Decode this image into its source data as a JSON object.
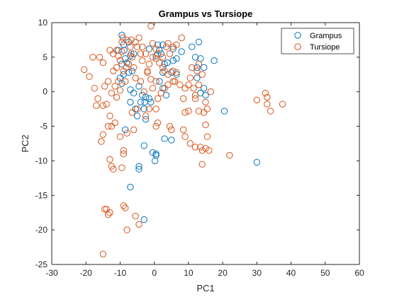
{
  "chart_data": {
    "type": "scatter",
    "title": "Grampus vs Tursiope",
    "xlabel": "PC1",
    "ylabel": "PC2",
    "xlim": [
      -30,
      60
    ],
    "ylim": [
      -25,
      10
    ],
    "x_ticks": [
      "-30",
      "-20",
      "-10",
      "0",
      "10",
      "20",
      "30",
      "40",
      "50",
      "60"
    ],
    "y_ticks": [
      "-25",
      "-20",
      "-15",
      "-10",
      "-5",
      "0",
      "5",
      "10"
    ],
    "grid": false,
    "legend_position": "top-right",
    "series": [
      {
        "name": "Grampus",
        "color": "#0072BD",
        "points": [
          [
            -9.5,
            8.2
          ],
          [
            -8.8,
            6.0
          ],
          [
            -7.5,
            7.2
          ],
          [
            -9.0,
            6.8
          ],
          [
            -10.5,
            6.0
          ],
          [
            -7.0,
            5.2
          ],
          [
            -6.0,
            5.5
          ],
          [
            -8.5,
            4.8
          ],
          [
            -9.5,
            4.0
          ],
          [
            -8.0,
            4.2
          ],
          [
            -7.5,
            2.8
          ],
          [
            -6.5,
            3.0
          ],
          [
            -9.0,
            2.5
          ],
          [
            -10.0,
            2.0
          ],
          [
            -9.5,
            1.2
          ],
          [
            -7.0,
            0.3
          ],
          [
            -6.0,
            -0.2
          ],
          [
            -4.5,
            0.8
          ],
          [
            -3.5,
            -0.5
          ],
          [
            -2.5,
            -0.8
          ],
          [
            -1.5,
            -1.0
          ],
          [
            -2.8,
            -1.5
          ],
          [
            -4.0,
            -1.5
          ],
          [
            -3.0,
            -2.5
          ],
          [
            -5.5,
            -2.5
          ],
          [
            -2.5,
            -4.0
          ],
          [
            -7.0,
            -1.5
          ],
          [
            -5.0,
            -3.5
          ],
          [
            -8.5,
            -5.5
          ],
          [
            -3.0,
            -7.8
          ],
          [
            -0.5,
            -8.8
          ],
          [
            0.5,
            -9.0
          ],
          [
            0.2,
            -10.0
          ],
          [
            -4.5,
            -10.8
          ],
          [
            -4.5,
            -11.2
          ],
          [
            -7.0,
            -13.8
          ],
          [
            -3.0,
            -18.5
          ],
          [
            -1.5,
            6.2
          ],
          [
            1.0,
            6.8
          ],
          [
            2.5,
            6.8
          ],
          [
            1.5,
            6.0
          ],
          [
            0.5,
            5.2
          ],
          [
            2.0,
            5.5
          ],
          [
            3.0,
            4.0
          ],
          [
            2.5,
            2.8
          ],
          [
            3.8,
            4.2
          ],
          [
            1.5,
            1.5
          ],
          [
            2.5,
            0.5
          ],
          [
            3.5,
            -0.5
          ],
          [
            5.0,
            2.8
          ],
          [
            6.5,
            4.8
          ],
          [
            5.5,
            4.5
          ],
          [
            6.5,
            2.5
          ],
          [
            5.5,
            6.2
          ],
          [
            8.0,
            5.8
          ],
          [
            11.0,
            6.5
          ],
          [
            13.0,
            7.2
          ],
          [
            12.0,
            5.0
          ],
          [
            12.5,
            3.5
          ],
          [
            13.5,
            4.8
          ],
          [
            14.5,
            3.5
          ],
          [
            12.5,
            2.0
          ],
          [
            14.5,
            0.5
          ],
          [
            13.5,
            -0.2
          ],
          [
            15.0,
            -0.5
          ],
          [
            17.5,
            4.5
          ],
          [
            20.5,
            -2.8
          ],
          [
            3.0,
            -6.8
          ],
          [
            5.0,
            -7.0
          ],
          [
            0.5,
            -9.2
          ],
          [
            -1.0,
            -1.5
          ],
          [
            30.0,
            -10.2
          ]
        ]
      },
      {
        "name": "Tursiope",
        "color": "#D95319",
        "points": [
          [
            -1.0,
            9.5
          ],
          [
            -13.0,
            6.0
          ],
          [
            -12.0,
            5.5
          ],
          [
            -11.0,
            6.0
          ],
          [
            -10.5,
            5.2
          ],
          [
            -9.5,
            7.2
          ],
          [
            -9.2,
            7.8
          ],
          [
            -6.8,
            7.5
          ],
          [
            -5.5,
            7.2
          ],
          [
            -5.0,
            6.5
          ],
          [
            -4.0,
            5.5
          ],
          [
            -3.5,
            4.5
          ],
          [
            -2.5,
            5.5
          ],
          [
            -1.5,
            4.0
          ],
          [
            -0.5,
            5.0
          ],
          [
            -0.5,
            7.0
          ],
          [
            0.5,
            6.2
          ],
          [
            -7.5,
            4.0
          ],
          [
            -9.0,
            3.0
          ],
          [
            -8.5,
            1.5
          ],
          [
            -10.0,
            0.2
          ],
          [
            -11.0,
            -0.8
          ],
          [
            -12.5,
            -0.2
          ],
          [
            -13.5,
            1.5
          ],
          [
            -12.0,
            3.0
          ],
          [
            -15.0,
            4.2
          ],
          [
            -16.0,
            5.0
          ],
          [
            -18.0,
            5.0
          ],
          [
            -19.0,
            2.2
          ],
          [
            -20.5,
            3.2
          ],
          [
            -17.5,
            0.5
          ],
          [
            -16.5,
            -1.0
          ],
          [
            -17.0,
            -2.0
          ],
          [
            -15.0,
            -2.0
          ],
          [
            -14.0,
            -1.8
          ],
          [
            -14.5,
            0.8
          ],
          [
            -13.0,
            -3.5
          ],
          [
            -12.5,
            -5.0
          ],
          [
            -11.5,
            -4.5
          ],
          [
            -13.5,
            -5.0
          ],
          [
            -15.0,
            -6.2
          ],
          [
            -15.5,
            -7.2
          ],
          [
            -13.0,
            -9.8
          ],
          [
            -12.5,
            -10.8
          ],
          [
            -12.0,
            -11.2
          ],
          [
            -9.5,
            -11.0
          ],
          [
            -9.0,
            -8.5
          ],
          [
            -9.0,
            -9.0
          ],
          [
            -10.0,
            -6.5
          ],
          [
            -8.0,
            -6.0
          ],
          [
            -6.0,
            -5.5
          ],
          [
            -6.5,
            -3.0
          ],
          [
            -5.0,
            -2.5
          ],
          [
            -14.5,
            -17.0
          ],
          [
            -14.0,
            -17.0
          ],
          [
            -13.0,
            -17.5
          ],
          [
            -13.5,
            -17.8
          ],
          [
            -9.0,
            -16.5
          ],
          [
            -8.5,
            -16.8
          ],
          [
            -5.5,
            -18.0
          ],
          [
            -4.5,
            -19.2
          ],
          [
            -8.0,
            -20.0
          ],
          [
            -15.0,
            -23.5
          ],
          [
            1.0,
            -4.5
          ],
          [
            0.5,
            -5.0
          ],
          [
            4.5,
            -5.0
          ],
          [
            5.0,
            -5.5
          ],
          [
            9.0,
            -6.5
          ],
          [
            8.5,
            -5.5
          ],
          [
            10.5,
            -7.5
          ],
          [
            12.0,
            -8.0
          ],
          [
            14.0,
            -8.5
          ],
          [
            13.5,
            -8.0
          ],
          [
            15.0,
            -8.2
          ],
          [
            14.0,
            -10.5
          ],
          [
            16.0,
            -8.5
          ],
          [
            15.5,
            -6.5
          ],
          [
            15.0,
            -4.8
          ],
          [
            14.5,
            -3.0
          ],
          [
            15.5,
            -2.5
          ],
          [
            15.0,
            -1.5
          ],
          [
            13.0,
            -2.8
          ],
          [
            12.0,
            -1.0
          ],
          [
            11.5,
            0.5
          ],
          [
            10.0,
            1.0
          ],
          [
            10.0,
            -2.8
          ],
          [
            9.0,
            -3.0
          ],
          [
            9.0,
            0.5
          ],
          [
            8.5,
            -1.0
          ],
          [
            7.5,
            1.0
          ],
          [
            6.0,
            1.5
          ],
          [
            6.5,
            2.8
          ],
          [
            5.5,
            1.5
          ],
          [
            4.0,
            2.5
          ],
          [
            3.0,
            3.0
          ],
          [
            2.5,
            3.5
          ],
          [
            1.5,
            4.2
          ],
          [
            0.5,
            4.8
          ],
          [
            1.0,
            5.5
          ],
          [
            2.5,
            5.0
          ],
          [
            4.5,
            5.5
          ],
          [
            3.5,
            6.5
          ],
          [
            4.0,
            7.0
          ],
          [
            5.5,
            6.5
          ],
          [
            6.5,
            6.8
          ],
          [
            8.0,
            7.8
          ],
          [
            5.5,
            3.0
          ],
          [
            4.0,
            1.0
          ],
          [
            3.0,
            0.5
          ],
          [
            2.0,
            -0.2
          ],
          [
            1.0,
            -1.0
          ],
          [
            0.5,
            -2.5
          ],
          [
            -1.5,
            -2.5
          ],
          [
            -2.5,
            -3.5
          ],
          [
            -3.0,
            0.0
          ],
          [
            -4.0,
            1.5
          ],
          [
            -5.5,
            2.0
          ],
          [
            -6.0,
            3.5
          ],
          [
            -6.5,
            5.0
          ],
          [
            -7.0,
            6.5
          ],
          [
            -8.0,
            7.5
          ],
          [
            -9.5,
            5.8
          ],
          [
            -10.0,
            4.5
          ],
          [
            -11.0,
            3.5
          ],
          [
            -10.5,
            1.5
          ],
          [
            -11.5,
            0.8
          ],
          [
            -3.5,
            6.5
          ],
          [
            -4.5,
            7.8
          ],
          [
            -2.0,
            2.8
          ],
          [
            -1.0,
            1.8
          ],
          [
            -0.5,
            0.5
          ],
          [
            0.5,
            1.5
          ],
          [
            12.5,
            3.0
          ],
          [
            13.0,
            4.0
          ],
          [
            11.0,
            3.5
          ],
          [
            10.5,
            2.0
          ],
          [
            14.0,
            2.5
          ],
          [
            13.0,
            1.0
          ],
          [
            16.5,
            0.0
          ],
          [
            12.0,
            -0.5
          ],
          [
            22.0,
            -9.2
          ],
          [
            30.0,
            -1.2
          ],
          [
            32.5,
            -0.2
          ],
          [
            33.0,
            -0.8
          ],
          [
            33.0,
            -1.8
          ],
          [
            34.0,
            -2.8
          ],
          [
            37.5,
            -1.8
          ],
          [
            -6.8,
            5.5
          ],
          [
            -8.2,
            3.5
          ],
          [
            -2.0,
            3.0
          ]
        ]
      }
    ]
  }
}
